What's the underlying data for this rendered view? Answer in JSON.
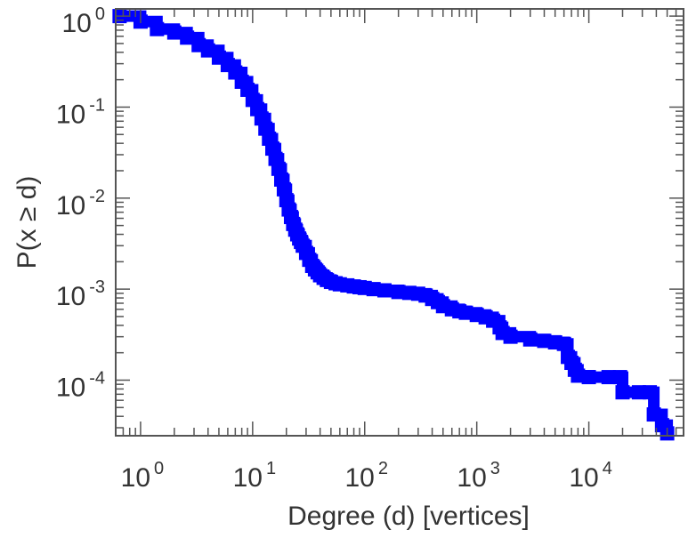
{
  "chart_data": {
    "type": "line",
    "xlabel": "Degree (d) [vertices]",
    "ylabel": "P(x ≥ d)",
    "xscale": "log",
    "yscale": "log",
    "xlim": [
      0.6,
      70000
    ],
    "ylim": [
      2.45e-05,
      1.2
    ],
    "grid": false,
    "x_ticks": [
      {
        "base": "10",
        "exp": "0",
        "value": 1
      },
      {
        "base": "10",
        "exp": "1",
        "value": 10
      },
      {
        "base": "10",
        "exp": "2",
        "value": 100
      },
      {
        "base": "10",
        "exp": "3",
        "value": 1000
      },
      {
        "base": "10",
        "exp": "4",
        "value": 10000
      }
    ],
    "y_ticks": [
      {
        "base": "10",
        "exp": "0",
        "value": 1
      },
      {
        "base": "10",
        "exp": "-1",
        "value": 0.1
      },
      {
        "base": "10",
        "exp": "-2",
        "value": 0.01
      },
      {
        "base": "10",
        "exp": "-3",
        "value": 0.001
      },
      {
        "base": "10",
        "exp": "-4",
        "value": 0.0001
      }
    ],
    "series": [
      {
        "color": "#0000ff",
        "style": "step-ccdf-squares",
        "x": [
          0.65,
          1,
          1.4,
          2,
          2.6,
          3.3,
          4,
          5,
          6,
          7,
          8,
          9,
          10,
          11,
          12,
          13,
          14,
          15,
          16,
          17,
          18,
          19,
          20,
          21,
          22,
          23,
          24,
          25,
          26,
          27,
          28,
          30,
          32,
          34,
          36,
          38,
          40,
          43,
          46,
          50,
          55,
          60,
          70,
          80,
          90,
          100,
          120,
          150,
          200,
          250,
          300,
          350,
          400,
          450,
          500,
          600,
          700,
          800,
          1000,
          1200,
          1400,
          1600,
          1700,
          2000,
          3000,
          4000,
          5000,
          6000,
          6500,
          7000,
          7500,
          8000,
          10000,
          15000,
          19000,
          20000,
          28000,
          35000,
          38000,
          45000,
          50000
        ],
        "y": [
          1.0,
          0.87,
          0.72,
          0.66,
          0.58,
          0.48,
          0.42,
          0.35,
          0.29,
          0.24,
          0.19,
          0.155,
          0.12,
          0.095,
          0.075,
          0.058,
          0.045,
          0.035,
          0.027,
          0.021,
          0.016,
          0.0125,
          0.0095,
          0.0075,
          0.0062,
          0.0052,
          0.0045,
          0.004,
          0.0036,
          0.0033,
          0.003,
          0.0025,
          0.0021,
          0.0018,
          0.00165,
          0.00153,
          0.00142,
          0.00133,
          0.00126,
          0.0012,
          0.00116,
          0.00113,
          0.0011,
          0.00107,
          0.00105,
          0.00103,
          0.001,
          0.00097,
          0.00093,
          0.00091,
          0.00089,
          0.00085,
          0.00078,
          0.00072,
          0.00065,
          0.0006,
          0.00057,
          0.00055,
          0.00052,
          0.00049,
          0.00045,
          0.00038,
          0.00033,
          0.0003,
          0.00028,
          0.00027,
          0.00026,
          0.00025,
          0.00018,
          0.000155,
          0.00013,
          0.000112,
          0.000108,
          0.000108,
          0.000108,
          7.35e-05,
          7.35e-05,
          7.35e-05,
          4.2e-05,
          3.2e-05,
          2.6e-05
        ]
      }
    ]
  }
}
